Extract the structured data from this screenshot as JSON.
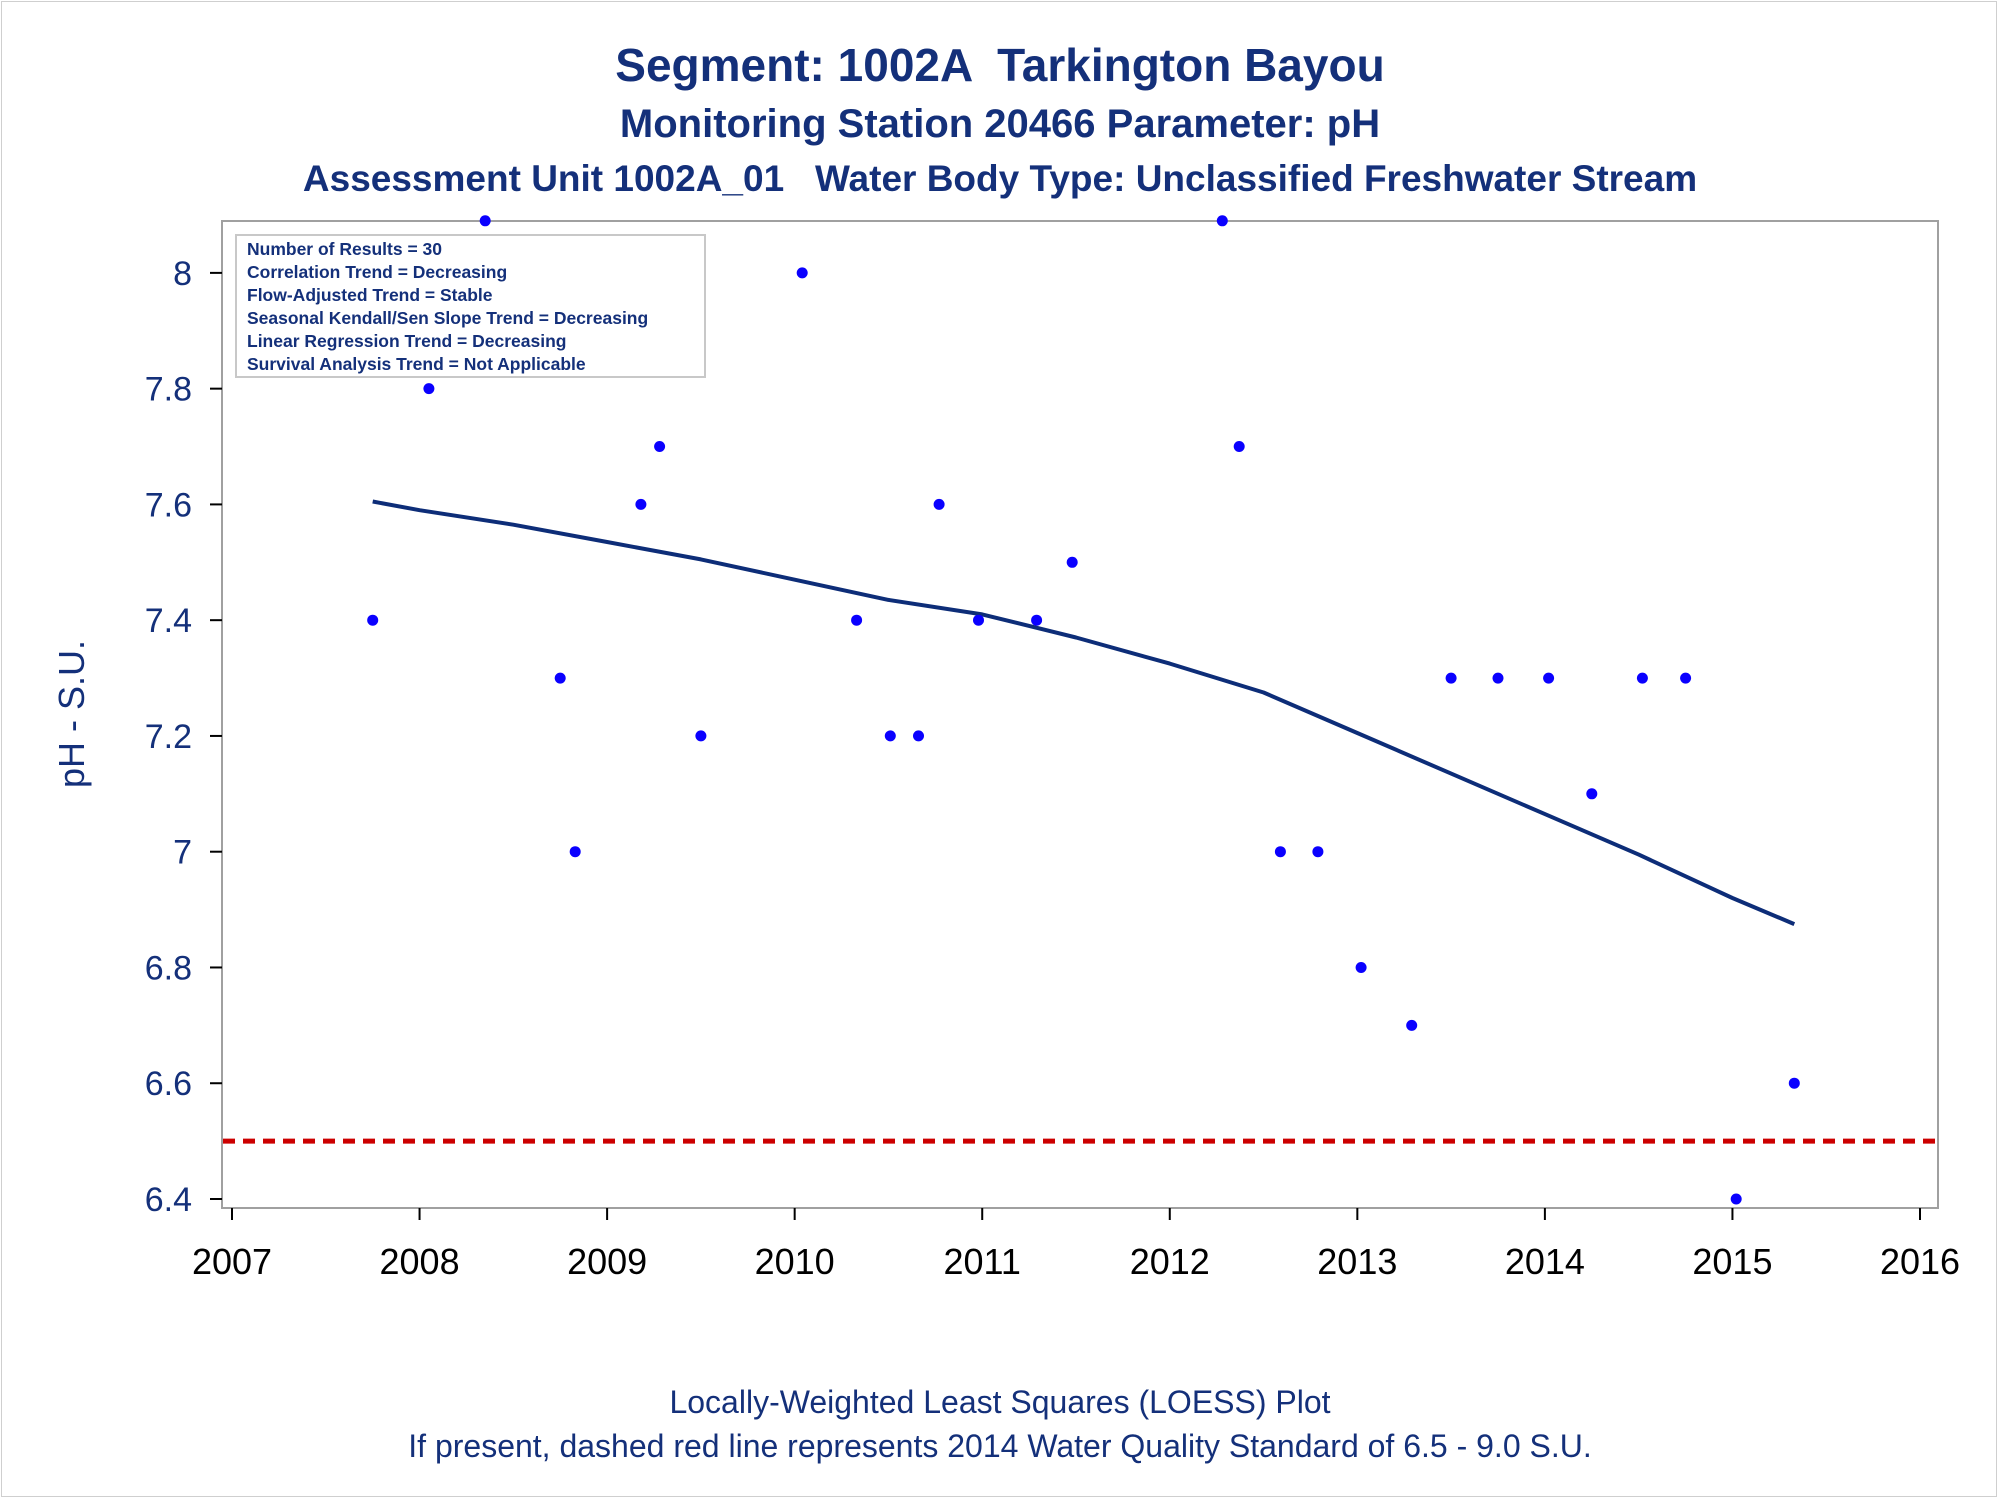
{
  "titles": {
    "line1": "Segment: 1002A  Tarkington Bayou",
    "line2": "Monitoring Station 20466 Parameter: pH",
    "line3": "Assessment Unit 1002A_01   Water Body Type: Unclassified Freshwater Stream"
  },
  "footnotes": {
    "line1": "Locally-Weighted Least Squares (LOESS) Plot",
    "line2": "If present, dashed red line represents 2014 Water Quality Standard of 6.5 - 9.0 S.U."
  },
  "inset": {
    "lines": [
      "Number of Results = 30",
      "Correlation Trend = Decreasing",
      "Flow-Adjusted Trend = Stable",
      "Seasonal Kendall/Sen Slope Trend = Decreasing",
      "Linear Regression Trend = Decreasing",
      "Survival Analysis Trend = Not Applicable"
    ]
  },
  "colors": {
    "points": "#0a00ff",
    "loess": "#0d2d78",
    "standard": "#cc0000",
    "text": "#14307a",
    "axis": "#000000",
    "frame": "#a0a0a0"
  },
  "chart_data": {
    "type": "scatter",
    "ylabel": "pH - S.U.",
    "xlabel": "",
    "xlim": [
      2007,
      2016
    ],
    "ylim": [
      6.4,
      8.1
    ],
    "xticks": [
      "2007",
      "2008",
      "2009",
      "2010",
      "2011",
      "2012",
      "2013",
      "2014",
      "2015",
      "2016"
    ],
    "yticks": [
      "6.4",
      "6.6",
      "6.8",
      "7",
      "7.2",
      "7.4",
      "7.6",
      "7.8",
      "8"
    ],
    "grid": false,
    "series": [
      {
        "kind": "points",
        "x": [
          2007.75,
          2008.05,
          2008.35,
          2008.75,
          2008.83,
          2009.18,
          2009.28,
          2009.5,
          2010.04,
          2010.33,
          2010.51,
          2010.66,
          2010.77,
          2010.98,
          2011.29,
          2011.48,
          2012.28,
          2012.37,
          2012.59,
          2012.79,
          2013.02,
          2013.29,
          2013.5,
          2013.75,
          2014.02,
          2014.25,
          2014.52,
          2014.75,
          2015.02,
          2015.33
        ],
        "y": [
          7.4,
          7.8,
          8.09,
          7.3,
          7.0,
          7.6,
          7.7,
          7.2,
          8.0,
          7.4,
          7.2,
          7.2,
          7.6,
          7.4,
          7.4,
          7.5,
          8.09,
          7.7,
          7.0,
          7.0,
          6.8,
          6.7,
          7.3,
          7.3,
          7.3,
          7.1,
          7.3,
          7.3,
          6.4,
          6.6
        ]
      },
      {
        "kind": "loess",
        "x": [
          2007.75,
          2008.0,
          2008.5,
          2009.0,
          2009.5,
          2010.0,
          2010.5,
          2011.0,
          2011.5,
          2012.0,
          2012.5,
          2013.0,
          2013.5,
          2014.0,
          2014.5,
          2015.0,
          2015.33
        ],
        "y": [
          7.605,
          7.59,
          7.565,
          7.535,
          7.505,
          7.47,
          7.435,
          7.41,
          7.37,
          7.325,
          7.275,
          7.205,
          7.135,
          7.065,
          6.995,
          6.92,
          6.875
        ]
      }
    ],
    "reference_line": {
      "y": 6.5,
      "style": "dashed"
    }
  }
}
